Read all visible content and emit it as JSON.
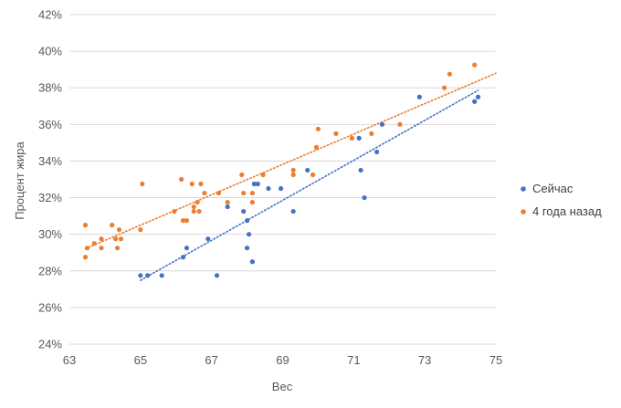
{
  "chart_data": {
    "type": "scatter",
    "xlabel": "Вес",
    "ylabel": "Процент жира",
    "xlim": [
      63,
      75
    ],
    "ylim": [
      0.24,
      0.42
    ],
    "xticks": [
      "63",
      "65",
      "67",
      "69",
      "71",
      "73",
      "75"
    ],
    "yticks": [
      "24%",
      "26%",
      "28%",
      "30%",
      "32%",
      "34%",
      "36%",
      "38%",
      "40%",
      "42%"
    ],
    "grid": "horizontal",
    "legend_position": "right",
    "series": [
      {
        "name": "Сейчас",
        "color": "#4472c4",
        "trendline": "linear",
        "points": [
          [
            65.0,
            0.2775
          ],
          [
            65.2,
            0.2775
          ],
          [
            65.6,
            0.2775
          ],
          [
            66.2,
            0.2875
          ],
          [
            66.3,
            0.2925
          ],
          [
            66.9,
            0.2975
          ],
          [
            67.15,
            0.2775
          ],
          [
            67.45,
            0.315
          ],
          [
            67.9,
            0.3125
          ],
          [
            68.0,
            0.2925
          ],
          [
            68.0,
            0.3075
          ],
          [
            68.05,
            0.3
          ],
          [
            68.15,
            0.285
          ],
          [
            68.2,
            0.3275
          ],
          [
            68.3,
            0.3275
          ],
          [
            68.6,
            0.325
          ],
          [
            68.95,
            0.325
          ],
          [
            69.3,
            0.3125
          ],
          [
            69.7,
            0.335
          ],
          [
            71.15,
            0.3525
          ],
          [
            71.2,
            0.335
          ],
          [
            71.3,
            0.32
          ],
          [
            71.65,
            0.345
          ],
          [
            71.8,
            0.36
          ],
          [
            72.85,
            0.375
          ],
          [
            74.4,
            0.3725
          ],
          [
            74.5,
            0.375
          ]
        ]
      },
      {
        "name": "4 года назад",
        "color": "#ed7d31",
        "trendline": "linear",
        "points": [
          [
            63.45,
            0.2875
          ],
          [
            63.45,
            0.305
          ],
          [
            63.5,
            0.2925
          ],
          [
            63.7,
            0.295
          ],
          [
            63.9,
            0.2975
          ],
          [
            63.9,
            0.2925
          ],
          [
            64.2,
            0.305
          ],
          [
            64.3,
            0.2975
          ],
          [
            64.35,
            0.2925
          ],
          [
            64.4,
            0.3025
          ],
          [
            64.45,
            0.2975
          ],
          [
            65.0,
            0.3025
          ],
          [
            65.05,
            0.3275
          ],
          [
            65.95,
            0.3125
          ],
          [
            66.15,
            0.33
          ],
          [
            66.2,
            0.3075
          ],
          [
            66.3,
            0.3075
          ],
          [
            66.45,
            0.3275
          ],
          [
            66.5,
            0.315
          ],
          [
            66.5,
            0.3125
          ],
          [
            66.6,
            0.3175
          ],
          [
            66.65,
            0.3125
          ],
          [
            66.7,
            0.3275
          ],
          [
            66.8,
            0.3225
          ],
          [
            67.2,
            0.3225
          ],
          [
            67.45,
            0.3175
          ],
          [
            67.85,
            0.3325
          ],
          [
            67.9,
            0.3225
          ],
          [
            68.15,
            0.3225
          ],
          [
            68.15,
            0.3175
          ],
          [
            68.45,
            0.3325
          ],
          [
            69.3,
            0.3325
          ],
          [
            69.3,
            0.335
          ],
          [
            69.85,
            0.3325
          ],
          [
            69.95,
            0.3475
          ],
          [
            70.0,
            0.3575
          ],
          [
            70.5,
            0.355
          ],
          [
            70.95,
            0.3525
          ],
          [
            71.5,
            0.355
          ],
          [
            72.3,
            0.36
          ],
          [
            73.55,
            0.38
          ],
          [
            73.7,
            0.3875
          ],
          [
            74.4,
            0.3925
          ]
        ]
      }
    ]
  }
}
